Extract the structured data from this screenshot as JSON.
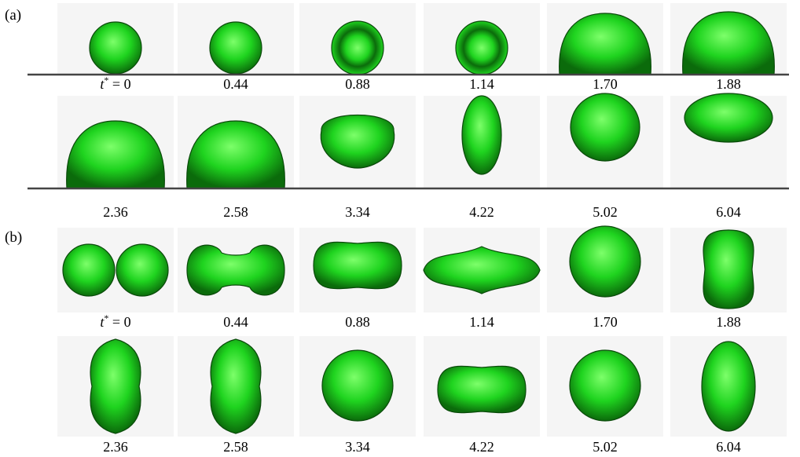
{
  "panels": [
    {
      "label": "(a)",
      "rows": [
        {
          "wall": true,
          "frames": [
            {
              "time": "0",
              "first": true,
              "shape": "sphere-on-wall"
            },
            {
              "time": "0.44",
              "shape": "sphere-on-wall"
            },
            {
              "time": "0.88",
              "shape": "ringed-sphere-on-wall"
            },
            {
              "time": "1.14",
              "shape": "ringed-sphere-on-wall"
            },
            {
              "time": "1.70",
              "shape": "dome-on-wall"
            },
            {
              "time": "1.88",
              "shape": "dome-on-wall"
            }
          ]
        },
        {
          "wall": true,
          "frames": [
            {
              "time": "2.36",
              "shape": "dome-on-wall"
            },
            {
              "time": "2.58",
              "shape": "dome-on-wall"
            },
            {
              "time": "3.34",
              "shape": "flattened-drop"
            },
            {
              "time": "4.22",
              "shape": "elongated-vertical-drop"
            },
            {
              "time": "5.02",
              "shape": "rounded-drop"
            },
            {
              "time": "6.04",
              "shape": "oblate-drop"
            }
          ]
        }
      ]
    },
    {
      "label": "(b)",
      "rows": [
        {
          "wall": false,
          "frames": [
            {
              "time": "0",
              "first": true,
              "shape": "two-touching-spheres"
            },
            {
              "time": "0.44",
              "shape": "necked-dumbbell"
            },
            {
              "time": "0.88",
              "shape": "horizontal-capsule"
            },
            {
              "time": "1.14",
              "shape": "horizontal-lens"
            },
            {
              "time": "1.70",
              "shape": "sphere"
            },
            {
              "time": "1.88",
              "shape": "vertical-capsule"
            }
          ]
        },
        {
          "wall": false,
          "frames": [
            {
              "time": "2.36",
              "shape": "vertical-prolate"
            },
            {
              "time": "2.58",
              "shape": "vertical-prolate"
            },
            {
              "time": "3.34",
              "shape": "sphere"
            },
            {
              "time": "4.22",
              "shape": "horizontal-capsule"
            },
            {
              "time": "5.02",
              "shape": "sphere"
            },
            {
              "time": "6.04",
              "shape": "vertical-ellipsoid"
            }
          ]
        }
      ]
    }
  ],
  "first_time_prefix": "t",
  "first_time_superscript": "*",
  "first_time_equals": " = ",
  "colors": {
    "drop_light": "#7dff6a",
    "drop_mid": "#1fd41f",
    "drop_dark": "#0b6b0b",
    "drop_outline": "#0a4a0a",
    "frame_bg": "#f5f5f5",
    "wall": "#444444"
  }
}
